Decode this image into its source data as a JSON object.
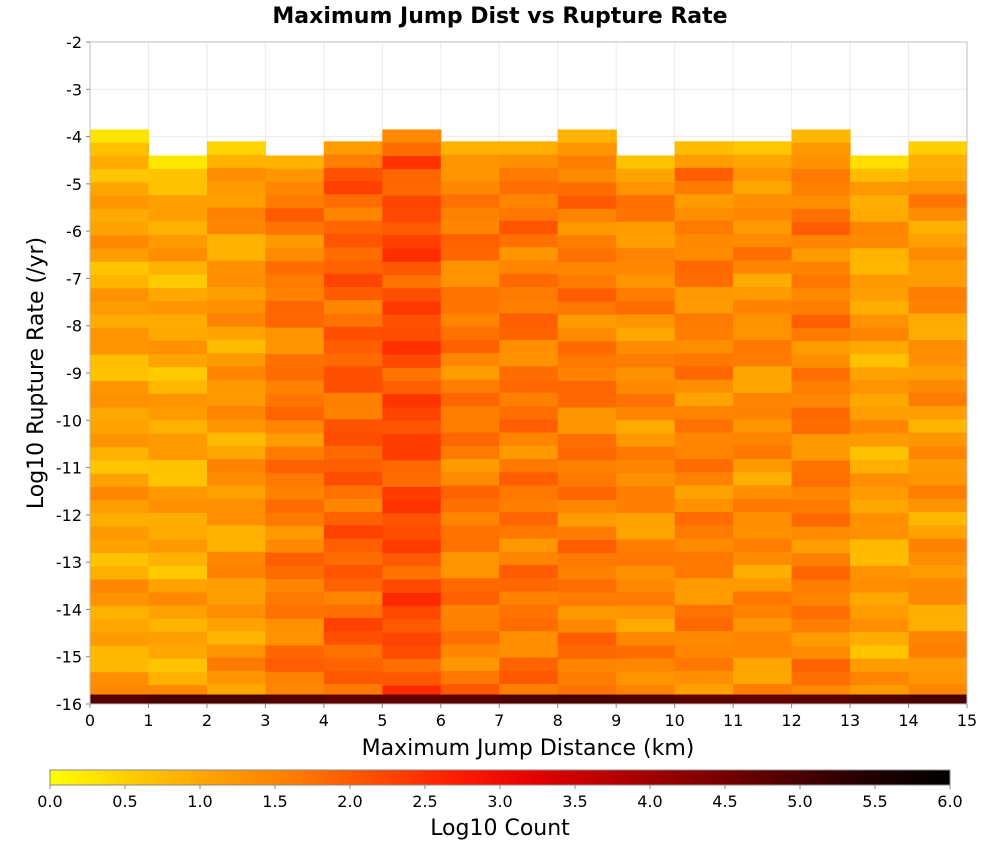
{
  "chart_data": {
    "type": "heatmap",
    "title": "Maximum Jump Dist vs Rupture Rate",
    "xlabel": "Maximum Jump Distance (km)",
    "ylabel": "Log10 Rupture Rate (/yr)",
    "colorbar_label": "Log10 Count",
    "xlim": [
      0,
      15
    ],
    "ylim": [
      -16,
      -2
    ],
    "x_ticks": [
      "0",
      "1",
      "2",
      "3",
      "4",
      "5",
      "6",
      "7",
      "8",
      "9",
      "10",
      "11",
      "12",
      "13",
      "14",
      "15"
    ],
    "y_ticks": [
      "-2",
      "-3",
      "-4",
      "-5",
      "-6",
      "-7",
      "-8",
      "-9",
      "-10",
      "-11",
      "-12",
      "-13",
      "-14",
      "-15",
      "-16"
    ],
    "colorbar_range": [
      0,
      6
    ],
    "colorbar_ticks": [
      "0.0",
      "0.5",
      "1.0",
      "1.5",
      "2.0",
      "2.5",
      "3.0",
      "3.5",
      "4.0",
      "4.5",
      "5.0",
      "5.5",
      "6.0"
    ],
    "colormap": [
      "#ffff00",
      "#ffcc00",
      "#ffa000",
      "#ff7a00",
      "#ff4a00",
      "#ff1a00",
      "#e00000",
      "#b00000",
      "#800000",
      "#500000",
      "#220000",
      "#000000"
    ],
    "grid": true,
    "x_bins": [
      0.5,
      1.5,
      2.5,
      3.5,
      4.5,
      5.5,
      6.5,
      7.5,
      8.5,
      9.5,
      10.5,
      11.5,
      12.5,
      13.5,
      14.5
    ],
    "column_top_rate": [
      -3.85,
      -4.4,
      -4.1,
      -4.4,
      -4.1,
      -3.85,
      -4.1,
      -4.1,
      -3.85,
      -4.4,
      -4.1,
      -4.1,
      -3.85,
      -4.4,
      -4.1
    ],
    "column_mean_log10_count": [
      1.05,
      1.0,
      1.2,
      1.6,
      1.9,
      2.15,
      1.6,
      1.65,
      1.6,
      1.4,
      1.5,
      1.35,
      1.55,
      1.1,
      1.25
    ],
    "bottom_row_rate": -15.9,
    "bottom_row_log10_count": 4.85
  }
}
